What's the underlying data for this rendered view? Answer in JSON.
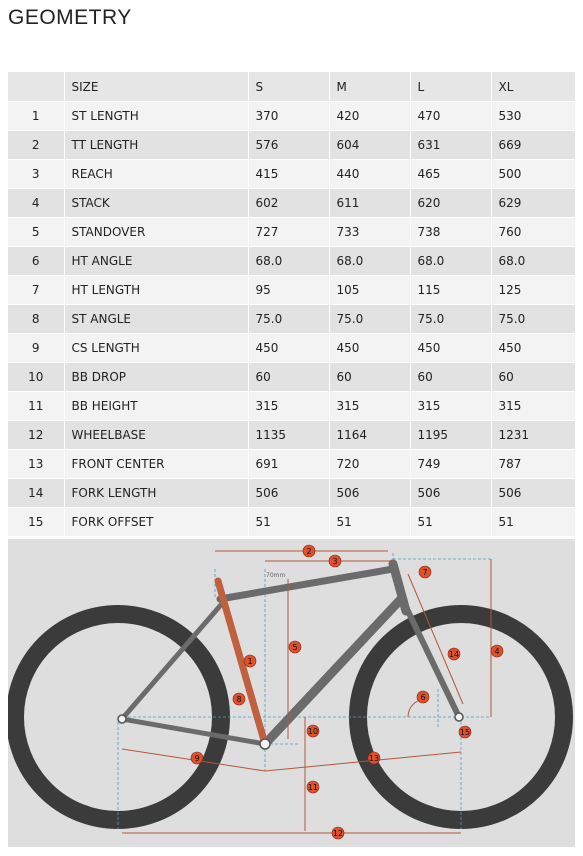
{
  "page": {
    "title": "GEOMETRY"
  },
  "table": {
    "header": [
      "",
      "SIZE",
      "S",
      "M",
      "L",
      "XL"
    ],
    "rows": [
      {
        "no": "1",
        "label": "ST LENGTH",
        "values": [
          "370",
          "420",
          "470",
          "530"
        ]
      },
      {
        "no": "2",
        "label": "TT LENGTH",
        "values": [
          "576",
          "604",
          "631",
          "669"
        ]
      },
      {
        "no": "3",
        "label": "REACH",
        "values": [
          "415",
          "440",
          "465",
          "500"
        ]
      },
      {
        "no": "4",
        "label": "STACK",
        "values": [
          "602",
          "611",
          "620",
          "629"
        ]
      },
      {
        "no": "5",
        "label": "STANDOVER",
        "values": [
          "727",
          "733",
          "738",
          "760"
        ]
      },
      {
        "no": "6",
        "label": "HT ANGLE",
        "values": [
          "68.0",
          "68.0",
          "68.0",
          "68.0"
        ]
      },
      {
        "no": "7",
        "label": "HT LENGTH",
        "values": [
          "95",
          "105",
          "115",
          "125"
        ]
      },
      {
        "no": "8",
        "label": "ST ANGLE",
        "values": [
          "75.0",
          "75.0",
          "75.0",
          "75.0"
        ]
      },
      {
        "no": "9",
        "label": "CS LENGTH",
        "values": [
          "450",
          "450",
          "450",
          "450"
        ]
      },
      {
        "no": "10",
        "label": "BB DROP",
        "values": [
          "60",
          "60",
          "60",
          "60"
        ]
      },
      {
        "no": "11",
        "label": "BB HEIGHT",
        "values": [
          "315",
          "315",
          "315",
          "315"
        ]
      },
      {
        "no": "12",
        "label": "WHEELBASE",
        "values": [
          "1135",
          "1164",
          "1195",
          "1231"
        ]
      },
      {
        "no": "13",
        "label": "FRONT CENTER",
        "values": [
          "691",
          "720",
          "749",
          "787"
        ]
      },
      {
        "no": "14",
        "label": "FORK LENGTH",
        "values": [
          "506",
          "506",
          "506",
          "506"
        ]
      },
      {
        "no": "15",
        "label": "FORK OFFSET",
        "values": [
          "51",
          "51",
          "51",
          "51"
        ]
      }
    ]
  },
  "diagram": {
    "annotation": "70mm",
    "markers": [
      "1",
      "2",
      "3",
      "4",
      "5",
      "6",
      "7",
      "8",
      "9",
      "10",
      "11",
      "12",
      "13",
      "14",
      "15"
    ],
    "colors": {
      "background": "#dedede",
      "tire": "#3b3b3b",
      "frame": "#6b6b6b",
      "seat_tube": "#c0603e",
      "marker": "#e0502a",
      "dimension_line": "#b5553a",
      "guide_line": "#4a9ec8"
    }
  }
}
